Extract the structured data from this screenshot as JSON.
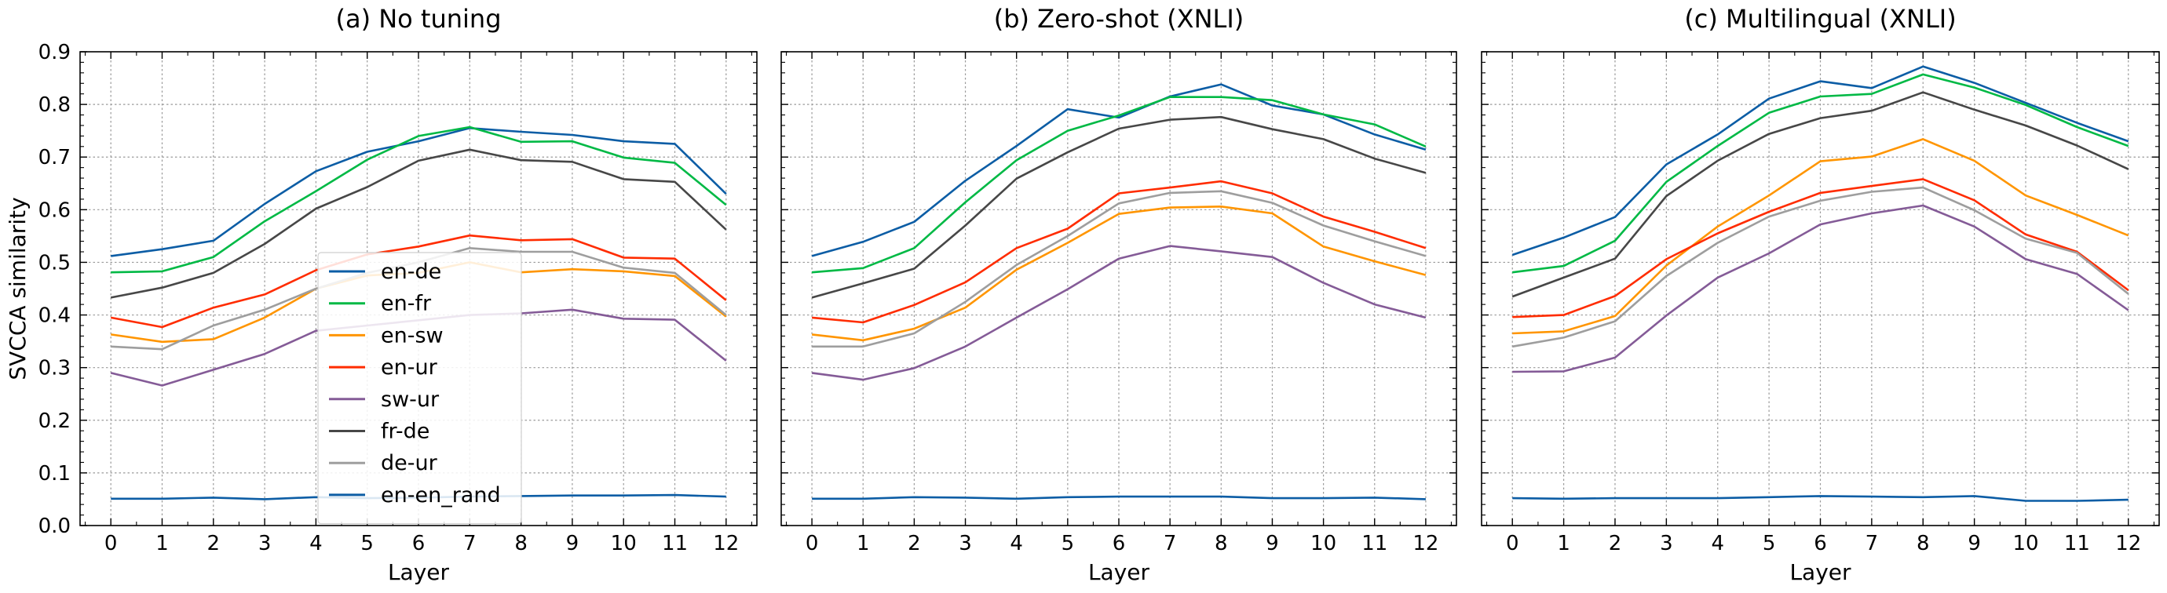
{
  "chart_data": [
    {
      "type": "line",
      "title": "(a) No tuning",
      "xlabel": "Layer",
      "ylabel": "SVCCA similarity",
      "xlim": [
        -0.6,
        12.6
      ],
      "ylim": [
        0.0,
        0.9
      ],
      "x": [
        0,
        1,
        2,
        3,
        4,
        5,
        6,
        7,
        8,
        9,
        10,
        11,
        12
      ],
      "legend": "center-left",
      "grid": true,
      "series": [
        {
          "name": "en-de",
          "color": "#0C5DA5",
          "values": [
            0.512,
            0.525,
            0.541,
            0.611,
            0.673,
            0.71,
            0.73,
            0.755,
            0.748,
            0.742,
            0.73,
            0.725,
            0.63
          ]
        },
        {
          "name": "en-fr",
          "color": "#00B945",
          "values": [
            0.481,
            0.483,
            0.51,
            0.578,
            0.635,
            0.695,
            0.74,
            0.757,
            0.729,
            0.73,
            0.699,
            0.689,
            0.609
          ]
        },
        {
          "name": "en-sw",
          "color": "#FF9500",
          "values": [
            0.363,
            0.349,
            0.354,
            0.395,
            0.45,
            0.475,
            0.48,
            0.5,
            0.481,
            0.487,
            0.483,
            0.474,
            0.397
          ]
        },
        {
          "name": "en-ur",
          "color": "#FF2C00",
          "values": [
            0.395,
            0.377,
            0.414,
            0.439,
            0.485,
            0.515,
            0.53,
            0.551,
            0.542,
            0.544,
            0.509,
            0.507,
            0.428
          ]
        },
        {
          "name": "sw-ur",
          "color": "#845B97",
          "values": [
            0.29,
            0.266,
            0.296,
            0.326,
            0.37,
            0.38,
            0.39,
            0.4,
            0.403,
            0.41,
            0.393,
            0.391,
            0.313
          ]
        },
        {
          "name": "fr-de",
          "color": "#474747",
          "values": [
            0.433,
            0.452,
            0.48,
            0.535,
            0.602,
            0.643,
            0.693,
            0.714,
            0.694,
            0.691,
            0.658,
            0.653,
            0.562
          ]
        },
        {
          "name": "de-ur",
          "color": "#9E9E9E",
          "values": [
            0.34,
            0.335,
            0.38,
            0.41,
            0.45,
            0.48,
            0.5,
            0.527,
            0.52,
            0.52,
            0.49,
            0.48,
            0.4
          ]
        },
        {
          "name": "en-en_rand",
          "color": "#0C5DA5",
          "values": [
            0.051,
            0.051,
            0.053,
            0.05,
            0.054,
            0.052,
            0.053,
            0.055,
            0.056,
            0.057,
            0.057,
            0.058,
            0.055
          ]
        }
      ]
    },
    {
      "type": "line",
      "title": "(b) Zero-shot (XNLI)",
      "xlabel": "Layer",
      "xlim": [
        -0.6,
        12.6
      ],
      "ylim": [
        0.0,
        0.9
      ],
      "x": [
        0,
        1,
        2,
        3,
        4,
        5,
        6,
        7,
        8,
        9,
        10,
        11,
        12
      ],
      "grid": true,
      "series": [
        {
          "color": "#0C5DA5",
          "values": [
            0.512,
            0.539,
            0.577,
            0.655,
            0.721,
            0.791,
            0.775,
            0.815,
            0.838,
            0.798,
            0.781,
            0.743,
            0.714
          ]
        },
        {
          "color": "#00B945",
          "values": [
            0.481,
            0.489,
            0.527,
            0.614,
            0.694,
            0.75,
            0.779,
            0.814,
            0.814,
            0.808,
            0.781,
            0.762,
            0.72
          ]
        },
        {
          "color": "#FF9500",
          "values": [
            0.363,
            0.352,
            0.374,
            0.414,
            0.486,
            0.537,
            0.592,
            0.604,
            0.606,
            0.593,
            0.53,
            0.502,
            0.476
          ]
        },
        {
          "color": "#FF2C00",
          "values": [
            0.395,
            0.386,
            0.419,
            0.462,
            0.527,
            0.564,
            0.631,
            0.642,
            0.654,
            0.631,
            0.587,
            0.558,
            0.527
          ]
        },
        {
          "color": "#845B97",
          "values": [
            0.29,
            0.277,
            0.299,
            0.34,
            0.395,
            0.449,
            0.507,
            0.531,
            0.521,
            0.51,
            0.461,
            0.42,
            0.395
          ]
        },
        {
          "color": "#474747",
          "values": [
            0.433,
            0.46,
            0.488,
            0.57,
            0.659,
            0.709,
            0.754,
            0.771,
            0.776,
            0.753,
            0.734,
            0.697,
            0.67
          ]
        },
        {
          "color": "#9E9E9E",
          "values": [
            0.34,
            0.34,
            0.365,
            0.425,
            0.495,
            0.55,
            0.612,
            0.632,
            0.635,
            0.613,
            0.57,
            0.54,
            0.512
          ]
        },
        {
          "color": "#0C5DA5",
          "values": [
            0.051,
            0.051,
            0.054,
            0.053,
            0.051,
            0.054,
            0.055,
            0.055,
            0.055,
            0.052,
            0.052,
            0.053,
            0.05
          ]
        }
      ]
    },
    {
      "type": "line",
      "title": "(c) Multilingual (XNLI)",
      "xlabel": "Layer",
      "xlim": [
        -0.6,
        12.6
      ],
      "ylim": [
        0.0,
        0.9
      ],
      "x": [
        0,
        1,
        2,
        3,
        4,
        5,
        6,
        7,
        8,
        9,
        10,
        11,
        12
      ],
      "grid": true,
      "series": [
        {
          "color": "#0C5DA5",
          "values": [
            0.514,
            0.547,
            0.586,
            0.686,
            0.743,
            0.811,
            0.844,
            0.831,
            0.872,
            0.841,
            0.803,
            0.765,
            0.73
          ]
        },
        {
          "color": "#00B945",
          "values": [
            0.481,
            0.493,
            0.541,
            0.653,
            0.721,
            0.784,
            0.815,
            0.82,
            0.857,
            0.832,
            0.799,
            0.757,
            0.721
          ]
        },
        {
          "color": "#FF9500",
          "values": [
            0.365,
            0.369,
            0.398,
            0.494,
            0.568,
            0.627,
            0.692,
            0.701,
            0.734,
            0.693,
            0.627,
            0.59,
            0.551
          ]
        },
        {
          "color": "#FF2C00",
          "values": [
            0.396,
            0.4,
            0.436,
            0.506,
            0.555,
            0.596,
            0.632,
            0.645,
            0.658,
            0.618,
            0.553,
            0.52,
            0.447
          ]
        },
        {
          "color": "#845B97",
          "values": [
            0.292,
            0.293,
            0.319,
            0.399,
            0.471,
            0.517,
            0.572,
            0.593,
            0.608,
            0.568,
            0.506,
            0.478,
            0.409
          ]
        },
        {
          "color": "#474747",
          "values": [
            0.435,
            0.471,
            0.507,
            0.626,
            0.693,
            0.744,
            0.774,
            0.788,
            0.823,
            0.79,
            0.76,
            0.722,
            0.677
          ]
        },
        {
          "color": "#9E9E9E",
          "values": [
            0.34,
            0.357,
            0.388,
            0.474,
            0.537,
            0.587,
            0.617,
            0.634,
            0.642,
            0.599,
            0.545,
            0.518,
            0.44
          ]
        },
        {
          "color": "#0C5DA5",
          "values": [
            0.052,
            0.051,
            0.052,
            0.052,
            0.052,
            0.054,
            0.056,
            0.055,
            0.054,
            0.056,
            0.047,
            0.047,
            0.049
          ]
        }
      ]
    }
  ]
}
